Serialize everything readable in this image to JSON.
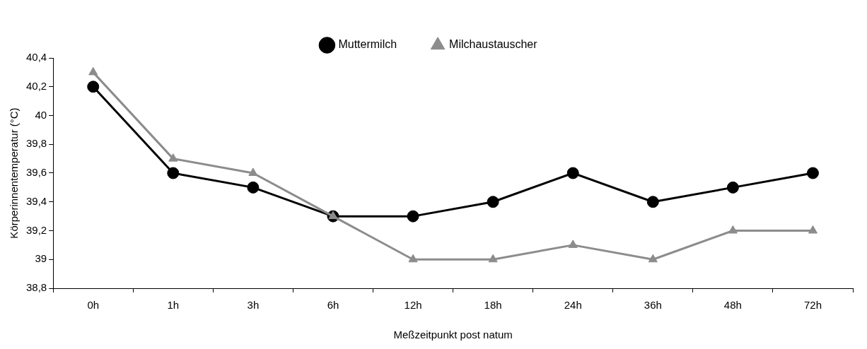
{
  "chart_data": {
    "type": "line",
    "xlabel": "Meßzeitpunkt post natum",
    "ylabel": "Körperinnentemperatur (°C)",
    "categories": [
      "0h",
      "1h",
      "3h",
      "6h",
      "12h",
      "18h",
      "24h",
      "36h",
      "48h",
      "72h"
    ],
    "series": [
      {
        "name": "Muttermilch",
        "color": "#000000",
        "marker": "circle",
        "values": [
          40.2,
          39.6,
          39.5,
          39.3,
          39.3,
          39.4,
          39.6,
          39.4,
          39.5,
          39.6
        ]
      },
      {
        "name": "Milchaustauscher",
        "color": "#8c8c8c",
        "marker": "triangle",
        "values": [
          40.3,
          39.7,
          39.6,
          39.3,
          39.0,
          39.0,
          39.1,
          39.0,
          39.2,
          39.2
        ]
      }
    ],
    "ylim": [
      38.8,
      40.4
    ],
    "yticks": [
      {
        "value": 38.8,
        "label": "38,8"
      },
      39,
      {
        "value": 39.2,
        "label": "39,2"
      },
      {
        "value": 39.4,
        "label": "39,4"
      },
      {
        "value": 39.6,
        "label": "39,6"
      },
      {
        "value": 39.8,
        "label": "39,8"
      },
      40,
      {
        "value": 40.2,
        "label": "40,2"
      },
      {
        "value": 40.4,
        "label": "40,4"
      }
    ],
    "grid": false,
    "legend": "top",
    "line_style": "solid"
  }
}
